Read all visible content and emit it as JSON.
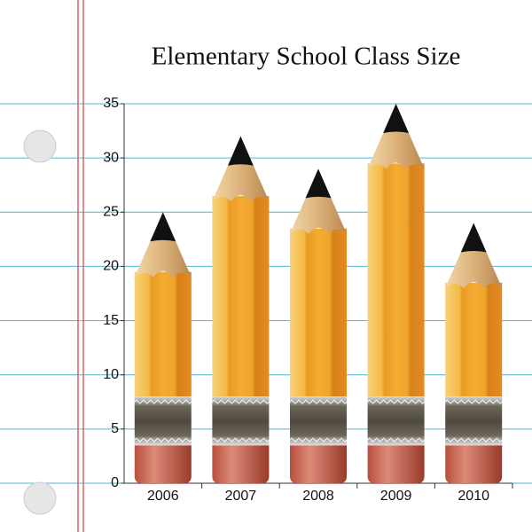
{
  "chart_data": {
    "type": "bar",
    "title": "Elementary School Class Size",
    "categories": [
      "2006",
      "2007",
      "2008",
      "2009",
      "2010"
    ],
    "values": [
      25,
      32,
      29,
      35,
      24
    ],
    "color": "#f0a330",
    "ylim": [
      0,
      35
    ],
    "yticks": [
      0,
      5,
      10,
      15,
      20,
      25,
      30,
      35
    ],
    "grid": true
  }
}
